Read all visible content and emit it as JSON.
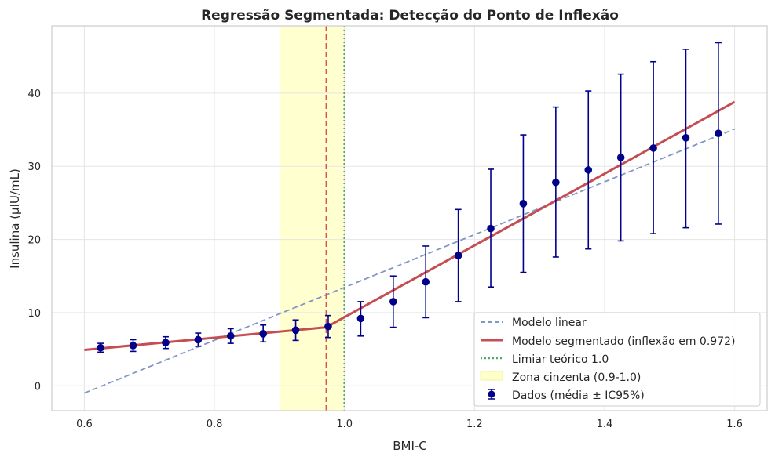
{
  "chart_data": {
    "type": "line",
    "title": "Regressão Segmentada: Detecção do Ponto de Inflexão",
    "xlabel": "BMI-C",
    "ylabel": "Insulina (µIU/mL)",
    "xlim": [
      0.55,
      1.65
    ],
    "ylim": [
      -3.4,
      49.2
    ],
    "x_ticks": [
      0.6,
      0.8,
      1.0,
      1.2,
      1.4,
      1.6
    ],
    "x_tick_labels": [
      "0.6",
      "0.8",
      "1.0",
      "1.2",
      "1.4",
      "1.6"
    ],
    "y_ticks": [
      0,
      10,
      20,
      30,
      40
    ],
    "y_tick_labels": [
      "0",
      "10",
      "20",
      "30",
      "40"
    ],
    "grid": true,
    "legend_position": "lower-right",
    "colors": {
      "linear": "#8096c6",
      "segmented": "#c44e52",
      "threshold": "#55a868",
      "breakpoint": "#e05050",
      "zone": "#ffffc8",
      "data": "#00008b"
    },
    "zone": {
      "x0": 0.9,
      "x1": 1.0,
      "label": "Zona cinzenta (0.9-1.0)"
    },
    "breakpoint_x": 0.972,
    "threshold_x": 1.0,
    "linear_model": {
      "name": "Modelo linear",
      "x": [
        0.6,
        1.6
      ],
      "y": [
        -1.0,
        35.1
      ]
    },
    "segmented_model": {
      "name": "Modelo segmentado (inflexão em 0.972)",
      "x": [
        0.6,
        0.972,
        1.6
      ],
      "y": [
        4.9,
        8.0,
        38.8
      ]
    },
    "threshold_label": "Limiar teórico 1.0",
    "series": [
      {
        "name": "Dados (média ± IC95%)",
        "x": [
          0.625,
          0.675,
          0.725,
          0.775,
          0.825,
          0.875,
          0.925,
          0.975,
          1.025,
          1.075,
          1.125,
          1.175,
          1.225,
          1.275,
          1.325,
          1.375,
          1.425,
          1.475,
          1.525,
          1.575
        ],
        "y": [
          5.2,
          5.5,
          5.9,
          6.3,
          6.8,
          7.1,
          7.6,
          8.1,
          9.2,
          11.5,
          14.2,
          17.8,
          21.5,
          24.9,
          27.8,
          29.5,
          31.2,
          32.5,
          33.9,
          34.5
        ],
        "lower": [
          4.6,
          4.7,
          5.1,
          5.4,
          5.8,
          6.0,
          6.2,
          6.6,
          6.8,
          8.0,
          9.3,
          11.5,
          13.5,
          15.5,
          17.6,
          18.7,
          19.8,
          20.8,
          21.6,
          22.1
        ],
        "upper": [
          5.8,
          6.3,
          6.7,
          7.2,
          7.8,
          8.3,
          9.0,
          9.6,
          11.5,
          15.0,
          19.1,
          24.1,
          29.6,
          34.3,
          38.1,
          40.3,
          42.6,
          44.3,
          46.0,
          46.9
        ]
      }
    ]
  }
}
